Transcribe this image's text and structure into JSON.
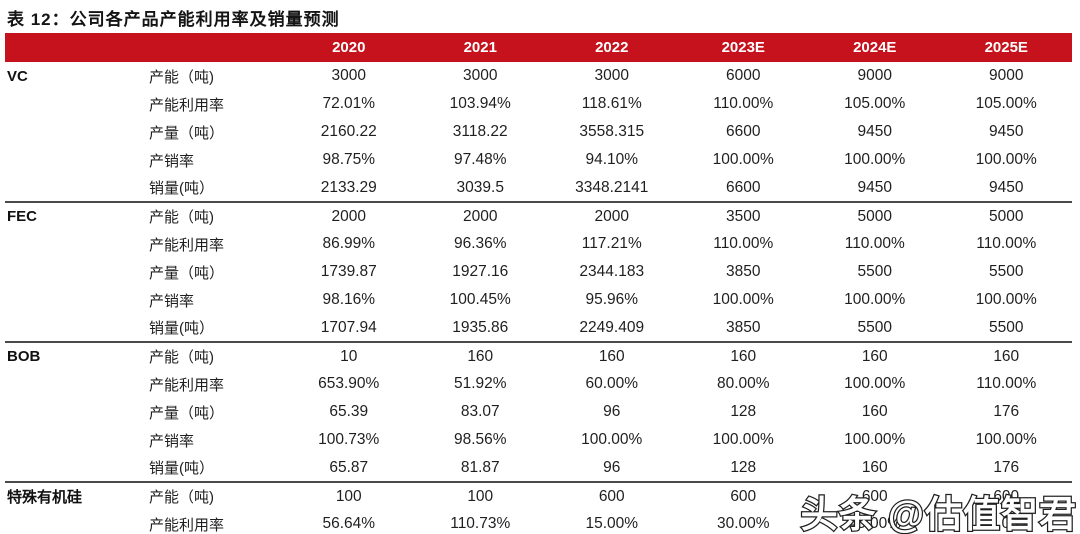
{
  "title": "表 12：公司各产品产能利用率及销量预测",
  "colors": {
    "header_bg": "#c5121d",
    "header_text": "#ffffff",
    "section_divider": "#4a4a4a",
    "body_text": "#1f1f1f"
  },
  "watermark": "头条 @估值智君",
  "table": {
    "year_headers": [
      "2020",
      "2021",
      "2022",
      "2023E",
      "2024E",
      "2025E"
    ],
    "groups": [
      {
        "name": "VC",
        "rows": [
          {
            "label": "产能（吨)",
            "values": [
              "3000",
              "3000",
              "3000",
              "6000",
              "9000",
              "9000"
            ]
          },
          {
            "label": "产能利用率",
            "values": [
              "72.01%",
              "103.94%",
              "118.61%",
              "110.00%",
              "105.00%",
              "105.00%"
            ]
          },
          {
            "label": "产量（吨）",
            "values": [
              "2160.22",
              "3118.22",
              "3558.315",
              "6600",
              "9450",
              "9450"
            ]
          },
          {
            "label": "产销率",
            "values": [
              "98.75%",
              "97.48%",
              "94.10%",
              "100.00%",
              "100.00%",
              "100.00%"
            ]
          },
          {
            "label": "销量(吨）",
            "values": [
              "2133.29",
              "3039.5",
              "3348.2141",
              "6600",
              "9450",
              "9450"
            ]
          }
        ]
      },
      {
        "name": "FEC",
        "rows": [
          {
            "label": "产能（吨)",
            "values": [
              "2000",
              "2000",
              "2000",
              "3500",
              "5000",
              "5000"
            ]
          },
          {
            "label": "产能利用率",
            "values": [
              "86.99%",
              "96.36%",
              "117.21%",
              "110.00%",
              "110.00%",
              "110.00%"
            ]
          },
          {
            "label": "产量（吨）",
            "values": [
              "1739.87",
              "1927.16",
              "2344.183",
              "3850",
              "5500",
              "5500"
            ]
          },
          {
            "label": "产销率",
            "values": [
              "98.16%",
              "100.45%",
              "95.96%",
              "100.00%",
              "100.00%",
              "100.00%"
            ]
          },
          {
            "label": "销量(吨）",
            "values": [
              "1707.94",
              "1935.86",
              "2249.409",
              "3850",
              "5500",
              "5500"
            ]
          }
        ]
      },
      {
        "name": "BOB",
        "rows": [
          {
            "label": "产能（吨)",
            "values": [
              "10",
              "160",
              "160",
              "160",
              "160",
              "160"
            ]
          },
          {
            "label": "产能利用率",
            "values": [
              "653.90%",
              "51.92%",
              "60.00%",
              "80.00%",
              "100.00%",
              "110.00%"
            ]
          },
          {
            "label": "产量（吨）",
            "values": [
              "65.39",
              "83.07",
              "96",
              "128",
              "160",
              "176"
            ]
          },
          {
            "label": "产销率",
            "values": [
              "100.73%",
              "98.56%",
              "100.00%",
              "100.00%",
              "100.00%",
              "100.00%"
            ]
          },
          {
            "label": "销量(吨）",
            "values": [
              "65.87",
              "81.87",
              "96",
              "128",
              "160",
              "176"
            ]
          }
        ]
      },
      {
        "name": "特殊有机硅",
        "rows": [
          {
            "label": "产能（吨)",
            "values": [
              "100",
              "100",
              "600",
              "600",
              "600",
              "600"
            ]
          },
          {
            "label": "产能利用率",
            "values": [
              "56.64%",
              "110.73%",
              "15.00%",
              "30.00%",
              "45.00%",
              "60.00%"
            ]
          }
        ]
      }
    ]
  }
}
